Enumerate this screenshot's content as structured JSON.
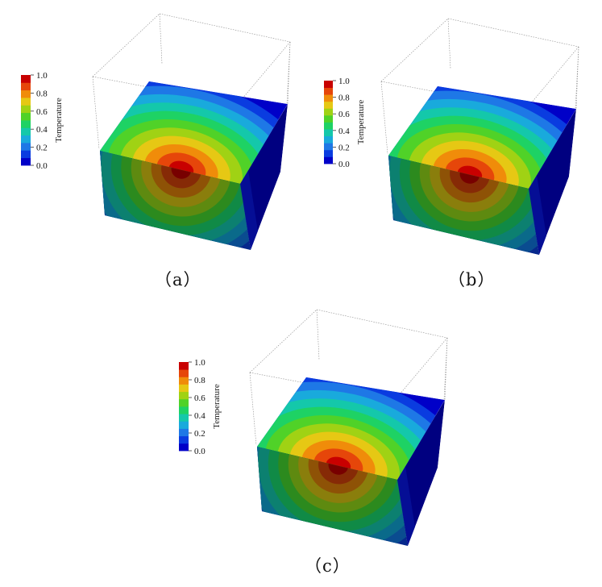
{
  "colorbar": {
    "title": "Temperature",
    "ticks": [
      "0.0",
      "0.2",
      "0.4",
      "0.6",
      "0.8",
      "1.0"
    ],
    "min": 0.0,
    "max": 1.0,
    "colors": [
      "#0000c8",
      "#0a3ce0",
      "#1e78e6",
      "#19aadc",
      "#14c8aa",
      "#1ed264",
      "#50d228",
      "#a0d214",
      "#e6c814",
      "#f08c0a",
      "#e6460a",
      "#c80000"
    ]
  },
  "panels": [
    {
      "id": "a",
      "label": "（a）"
    },
    {
      "id": "b",
      "label": "（b）"
    },
    {
      "id": "c",
      "label": "（c）"
    }
  ]
}
